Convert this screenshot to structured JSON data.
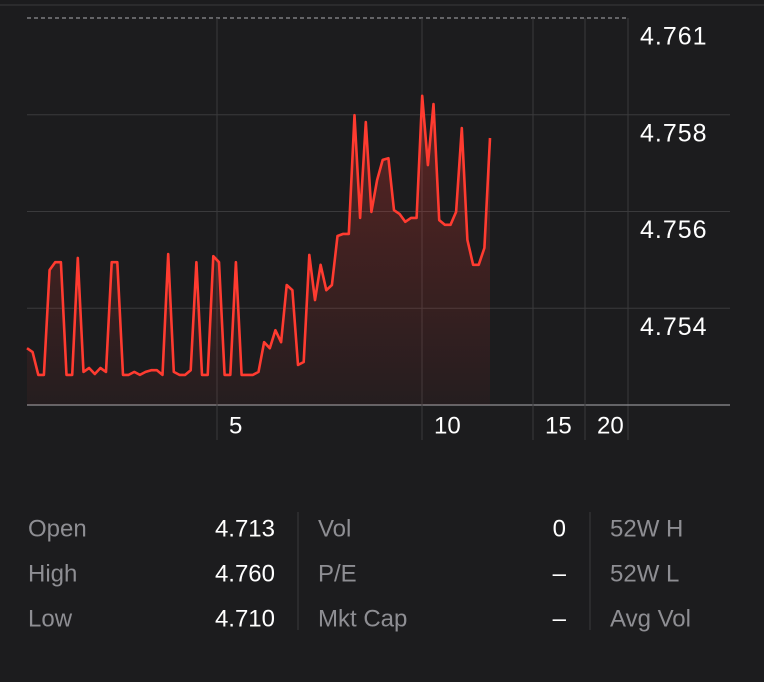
{
  "chart_data": {
    "type": "line",
    "color": "#ff3b30",
    "values": [
      4.75302,
      4.75293,
      4.7524,
      4.7524,
      4.75484,
      4.75502,
      4.75502,
      4.7524,
      4.7524,
      4.75512,
      4.75247,
      4.75256,
      4.75242,
      4.75256,
      4.75247,
      4.75502,
      4.75502,
      4.7524,
      4.7524,
      4.75247,
      4.7524,
      4.75247,
      4.75251,
      4.75251,
      4.7524,
      4.75521,
      4.75247,
      4.7524,
      4.7524,
      4.75251,
      4.75502,
      4.7524,
      4.7524,
      4.75516,
      4.75502,
      4.7524,
      4.7524,
      4.75502,
      4.7524,
      4.7524,
      4.7524,
      4.75247,
      4.75316,
      4.75302,
      4.75344,
      4.75316,
      4.75449,
      4.75437,
      4.75263,
      4.7527,
      4.75519,
      4.75414,
      4.75496,
      4.75437,
      4.75449,
      4.75563,
      4.75568,
      4.75568,
      4.75844,
      4.75605,
      4.75828,
      4.75619,
      4.75693,
      4.7574,
      4.75744,
      4.75623,
      4.75614,
      4.75596,
      4.75605,
      4.75605,
      4.75889,
      4.75728,
      4.7587,
      4.756,
      4.75589,
      4.75589,
      4.75619,
      4.75814,
      4.75554,
      4.75496,
      4.75496,
      4.75535,
      4.75791
    ],
    "ylim": [
      4.7517,
      4.7607
    ],
    "yticks": [
      {
        "value": 4.7607,
        "label": "4.761"
      },
      {
        "value": 4.75845,
        "label": "4.758"
      },
      {
        "value": 4.7562,
        "label": "4.756"
      },
      {
        "value": 4.75395,
        "label": "4.754"
      }
    ],
    "xticks": [
      5,
      10,
      15,
      20
    ]
  },
  "stats": [
    [
      {
        "label": "Open",
        "value": "4.713"
      },
      {
        "label": "High",
        "value": "4.760"
      },
      {
        "label": "Low",
        "value": "4.710"
      }
    ],
    [
      {
        "label": "Vol",
        "value": "0"
      },
      {
        "label": "P/E",
        "value": "–"
      },
      {
        "label": "Mkt Cap",
        "value": "–"
      }
    ],
    [
      {
        "label": "52W H"
      },
      {
        "label": "52W L"
      },
      {
        "label": "Avg Vol"
      }
    ]
  ]
}
